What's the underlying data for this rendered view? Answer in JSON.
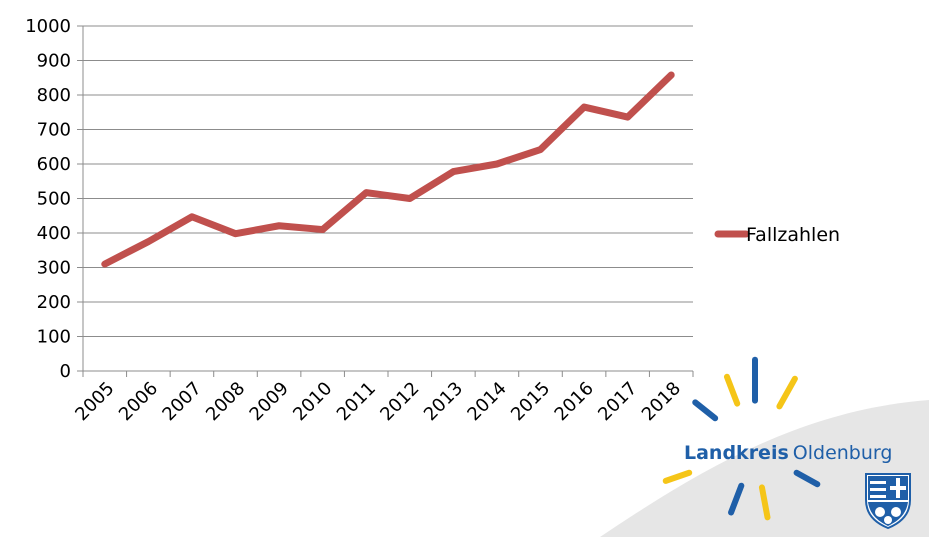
{
  "chart_data": {
    "type": "line",
    "title": "",
    "xlabel": "",
    "ylabel": "",
    "categories": [
      "2005",
      "2006",
      "2007",
      "2008",
      "2009",
      "2010",
      "2011",
      "2012",
      "2013",
      "2014",
      "2015",
      "2016",
      "2017",
      "2018"
    ],
    "series": [
      {
        "name": "Fallzahlen",
        "values": [
          310,
          375,
          447,
          398,
          421,
          410,
          517,
          500,
          578,
          600,
          642,
          765,
          736,
          858
        ],
        "color": "#c0504d"
      }
    ],
    "ylim": [
      0,
      1000
    ],
    "y_ticks": [
      "0",
      "100",
      "200",
      "300",
      "400",
      "500",
      "600",
      "700",
      "800",
      "900",
      "1000"
    ],
    "grid": "horizontal",
    "legend_position": "right"
  },
  "logo": {
    "word1": "Landkreis",
    "word2": "Oldenburg",
    "blue": "#1f5fa8",
    "yellow": "#f5c518",
    "icon": "coat-of-arms-icon"
  }
}
